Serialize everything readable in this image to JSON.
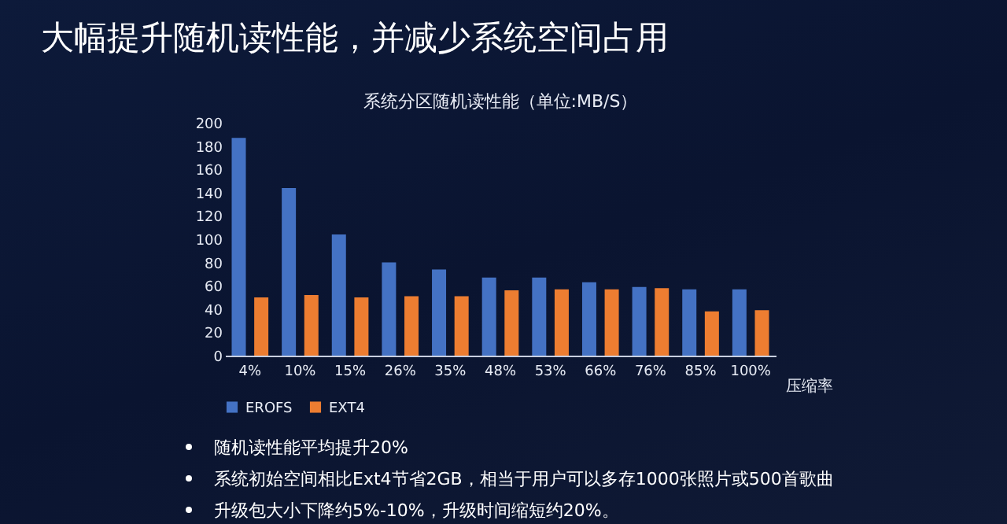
{
  "chart_data": {
    "type": "bar",
    "title": "大幅提升随机读性能，并减少系统空间占用",
    "subtitle": "系统分区随机读性能（单位:MB/S）",
    "xlabel": "压缩率",
    "categories": [
      "4%",
      "10%",
      "15%",
      "26%",
      "35%",
      "48%",
      "53%",
      "66%",
      "76%",
      "85%",
      "100%"
    ],
    "series": [
      {
        "name": "EROFS",
        "color": "#4472c4",
        "values": [
          187,
          144,
          104,
          80,
          74,
          67,
          67,
          63,
          59,
          57,
          57
        ]
      },
      {
        "name": "EXT4",
        "color": "#ed7d31",
        "values": [
          50,
          52,
          50,
          51,
          51,
          56,
          57,
          57,
          58,
          38,
          39
        ]
      }
    ],
    "ylim": [
      0,
      200
    ],
    "yticks": [
      0,
      20,
      40,
      60,
      80,
      100,
      120,
      140,
      160,
      180,
      200
    ],
    "legend": "bottom",
    "annotations": [
      "随机读性能平均提升20%",
      "系统初始空间相比Ext4节省2GB，相当于用户可以多存1000张照片或500首歌曲",
      "升级包大小下降约5%-10%，升级时间缩短约20%。"
    ]
  }
}
